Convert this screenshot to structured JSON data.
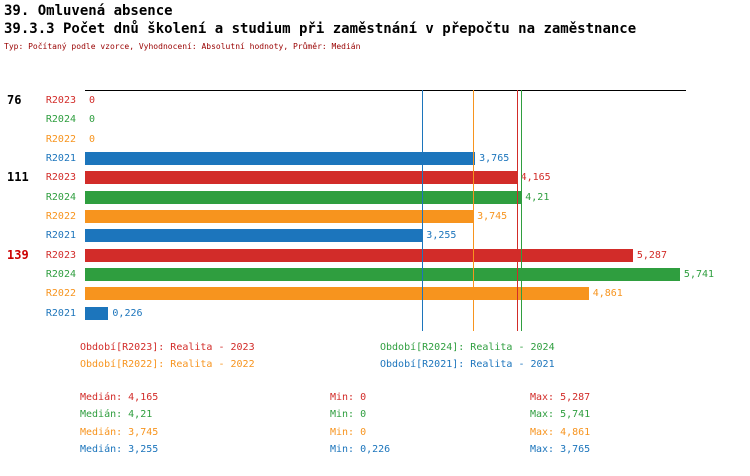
{
  "header": {
    "title1": "39. Omluvená absence",
    "title2": "39.3.3 Počet dnů školení a studium při zaměstnání v přepočtu na zaměstnance",
    "subtitle": "Typ: Počítaný podle vzorce, Vyhodnocení: Absolutní hodnoty, Průměr: Medián"
  },
  "colors": {
    "series": {
      "R2023": "#d22c29",
      "R2024": "#2f9e3f",
      "R2022": "#f7941e",
      "R2021": "#1c75bc"
    },
    "subtitle": "#990000",
    "axis": "#000000",
    "group_label_default": "#000000",
    "group_label_highlight": "#cc0000"
  },
  "chart_data": {
    "type": "bar",
    "orientation": "horizontal",
    "title": "39.3.3 Počet dnů školení a studium při zaměstnání v přepočtu na zaměstnance",
    "xlim": [
      0,
      5.79
    ],
    "grid": false,
    "legend_position": "bottom",
    "series_order": [
      "R2023",
      "R2024",
      "R2022",
      "R2021"
    ],
    "groups": [
      {
        "label": "76",
        "label_color": "#000000",
        "bars": [
          {
            "series": "R2023",
            "value": 0,
            "display": "0"
          },
          {
            "series": "R2024",
            "value": 0,
            "display": "0"
          },
          {
            "series": "R2022",
            "value": 0,
            "display": "0"
          },
          {
            "series": "R2021",
            "value": 3.765,
            "display": "3,765"
          }
        ]
      },
      {
        "label": "111",
        "label_color": "#000000",
        "bars": [
          {
            "series": "R2023",
            "value": 4.165,
            "display": "4,165"
          },
          {
            "series": "R2024",
            "value": 4.21,
            "display": "4,21"
          },
          {
            "series": "R2022",
            "value": 3.745,
            "display": "3,745"
          },
          {
            "series": "R2021",
            "value": 3.255,
            "display": "3,255"
          }
        ]
      },
      {
        "label": "139",
        "label_color": "#cc0000",
        "bars": [
          {
            "series": "R2023",
            "value": 5.287,
            "display": "5,287"
          },
          {
            "series": "R2024",
            "value": 5.741,
            "display": "5,741"
          },
          {
            "series": "R2022",
            "value": 4.861,
            "display": "4,861"
          },
          {
            "series": "R2021",
            "value": 0.226,
            "display": "0,226"
          }
        ]
      }
    ],
    "median_lines": [
      {
        "series": "R2021",
        "value": 3.255
      },
      {
        "series": "R2022",
        "value": 3.745
      },
      {
        "series": "R2023",
        "value": 4.165
      },
      {
        "series": "R2024",
        "value": 4.21
      }
    ]
  },
  "legend": {
    "items": [
      {
        "series": "R2023",
        "label": "Období[R2023]:",
        "text": "Realita - 2023",
        "col": 0,
        "row": 0
      },
      {
        "series": "R2024",
        "label": "Období[R2024]:",
        "text": "Realita - 2024",
        "col": 1,
        "row": 0
      },
      {
        "series": "R2022",
        "label": "Období[R2022]:",
        "text": "Realita - 2022",
        "col": 0,
        "row": 1
      },
      {
        "series": "R2021",
        "label": "Období[R2021]:",
        "text": "Realita - 2021",
        "col": 1,
        "row": 1
      }
    ]
  },
  "stats": {
    "rows": [
      {
        "series": "R2023",
        "median_label": "Medián:",
        "median": "4,165",
        "min_label": "Min:",
        "min": "0",
        "max_label": "Max:",
        "max": "5,287"
      },
      {
        "series": "R2024",
        "median_label": "Medián:",
        "median": "4,21",
        "min_label": "Min:",
        "min": "0",
        "max_label": "Max:",
        "max": "5,741"
      },
      {
        "series": "R2022",
        "median_label": "Medián:",
        "median": "3,745",
        "min_label": "Min:",
        "min": "0",
        "max_label": "Max:",
        "max": "4,861"
      },
      {
        "series": "R2021",
        "median_label": "Medián:",
        "median": "3,255",
        "min_label": "Min:",
        "min": "0,226",
        "max_label": "Max:",
        "max": "3,765"
      }
    ]
  }
}
